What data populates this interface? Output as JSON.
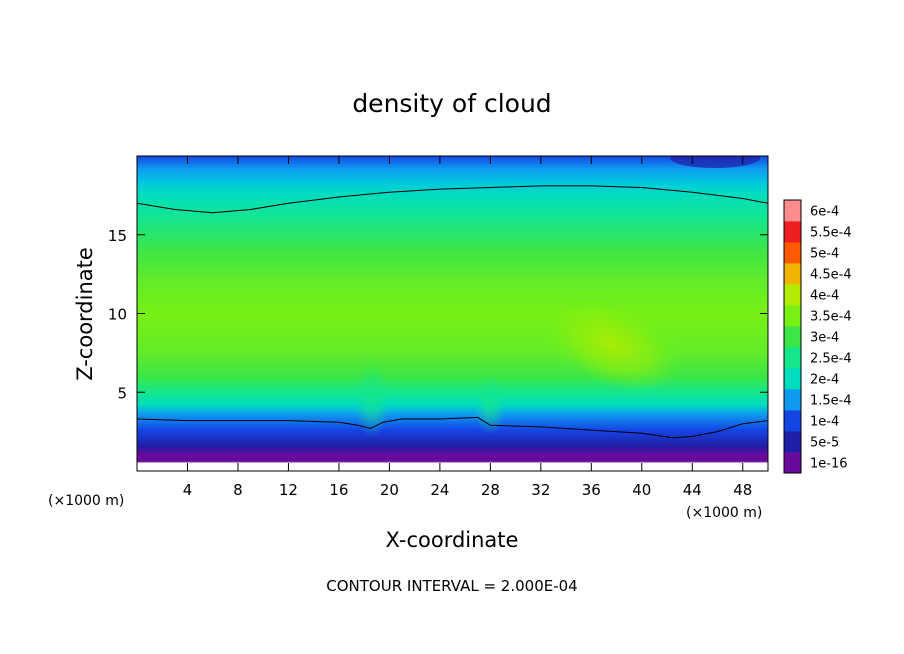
{
  "chart_data": {
    "type": "heatmap",
    "title": "density of cloud",
    "xlabel": "X-coordinate",
    "ylabel": "Z-coordinate",
    "x_unit_left": "(×1000 m)",
    "x_unit_right": "(×1000 m)",
    "footer": "CONTOUR INTERVAL = 2.000E-04",
    "xlim": [
      0,
      50
    ],
    "ylim": [
      0,
      20
    ],
    "x_ticks": [
      {
        "value": 4,
        "label": "4"
      },
      {
        "value": 8,
        "label": "8"
      },
      {
        "value": 12,
        "label": "12"
      },
      {
        "value": 16,
        "label": "16"
      },
      {
        "value": 20,
        "label": "20"
      },
      {
        "value": 24,
        "label": "24"
      },
      {
        "value": 28,
        "label": "28"
      },
      {
        "value": 32,
        "label": "32"
      },
      {
        "value": 36,
        "label": "36"
      },
      {
        "value": 40,
        "label": "40"
      },
      {
        "value": 44,
        "label": "44"
      },
      {
        "value": 48,
        "label": "48"
      }
    ],
    "y_ticks": [
      {
        "value": 5,
        "label": "5"
      },
      {
        "value": 10,
        "label": "10"
      },
      {
        "value": 15,
        "label": "15"
      }
    ],
    "colorbar": [
      {
        "label": "1e-16",
        "color": "#6a0a9c"
      },
      {
        "label": "5e-5",
        "color": "#1e1ea8"
      },
      {
        "label": "1e-4",
        "color": "#1446e6"
      },
      {
        "label": "1.5e-4",
        "color": "#0f9af0"
      },
      {
        "label": "2e-4",
        "color": "#00dcc0"
      },
      {
        "label": "2.5e-4",
        "color": "#14e68c"
      },
      {
        "label": "3e-4",
        "color": "#3ce646"
      },
      {
        "label": "3.5e-4",
        "color": "#78f014"
      },
      {
        "label": "4e-4",
        "color": "#b4ec00"
      },
      {
        "label": "4.5e-4",
        "color": "#f0b400"
      },
      {
        "label": "5e-4",
        "color": "#ff5a00"
      },
      {
        "label": "5.5e-4",
        "color": "#f01e1e"
      },
      {
        "label": "6e-4",
        "color": "#ff8c8c"
      }
    ],
    "contour_upper": {
      "x": [
        0,
        3,
        6,
        9,
        12,
        16,
        20,
        24,
        28,
        32,
        36,
        40,
        44,
        48,
        50
      ],
      "z": [
        17.0,
        16.6,
        16.4,
        16.6,
        17.0,
        17.4,
        17.7,
        17.9,
        18.0,
        18.1,
        18.1,
        18.0,
        17.7,
        17.3,
        17.0
      ]
    },
    "contour_lower": {
      "x": [
        0,
        4,
        8,
        12,
        16,
        17.5,
        18.5,
        19.5,
        21,
        24,
        27,
        28,
        32,
        36,
        40,
        42.5,
        44,
        46,
        48,
        50
      ],
      "z": [
        3.3,
        3.2,
        3.2,
        3.2,
        3.1,
        2.9,
        2.7,
        3.1,
        3.3,
        3.3,
        3.4,
        2.9,
        2.8,
        2.6,
        2.4,
        2.1,
        2.2,
        2.5,
        3.0,
        3.2
      ]
    }
  }
}
